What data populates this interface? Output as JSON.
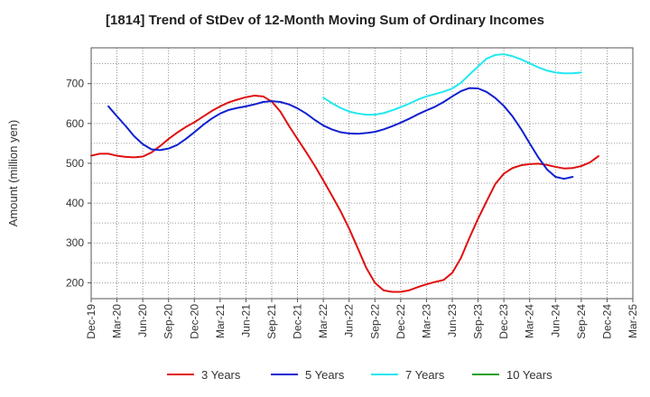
{
  "chart_data": {
    "type": "line",
    "title": "[1814]  Trend of StDev of 12-Month Moving Sum of Ordinary Incomes",
    "xlabel": "",
    "ylabel": "Amount (million yen)",
    "ylim": [
      160,
      790
    ],
    "yticks": [
      200,
      300,
      400,
      500,
      600,
      700
    ],
    "grid": true,
    "legend_position": "bottom",
    "x_tick_labels": [
      "Dec-19",
      "Mar-20",
      "Jun-20",
      "Sep-20",
      "Dec-20",
      "Mar-21",
      "Jun-21",
      "Sep-21",
      "Dec-21",
      "Mar-22",
      "Jun-22",
      "Sep-22",
      "Dec-22",
      "Mar-23",
      "Jun-23",
      "Sep-23",
      "Dec-23",
      "Mar-24",
      "Jun-24",
      "Sep-24",
      "Dec-24",
      "Mar-25"
    ],
    "x_months_total": 63,
    "series": [
      {
        "name": "3 Years",
        "color": "#e01010",
        "start_month_index": 0,
        "values": [
          519,
          524,
          524,
          519,
          516,
          515,
          517,
          527,
          543,
          561,
          577,
          591,
          603,
          617,
          631,
          643,
          653,
          660,
          666,
          670,
          668,
          655,
          630,
          594,
          561,
          528,
          494,
          457,
          419,
          380,
          336,
          287,
          237,
          200,
          181,
          177,
          177,
          181,
          189,
          196,
          202,
          207,
          225,
          262,
          313,
          361,
          405,
          448,
          474,
          488,
          495,
          498,
          499,
          496,
          491,
          487,
          488,
          493,
          502,
          518
        ]
      },
      {
        "name": "5 Years",
        "color": "#1020d0",
        "start_month_index": 2,
        "values": [
          643,
          618,
          594,
          568,
          548,
          535,
          533,
          537,
          546,
          561,
          578,
          596,
          612,
          625,
          634,
          639,
          643,
          648,
          654,
          656,
          654,
          648,
          638,
          625,
          609,
          595,
          585,
          578,
          575,
          574,
          576,
          579,
          585,
          593,
          602,
          612,
          623,
          633,
          642,
          654,
          668,
          681,
          689,
          688,
          679,
          664,
          644,
          618,
          586,
          550,
          515,
          485,
          466,
          461,
          466
        ]
      },
      {
        "name": "7 Years",
        "color": "#20e8f0",
        "start_month_index": 27,
        "values": [
          665,
          651,
          639,
          630,
          625,
          622,
          622,
          626,
          633,
          641,
          650,
          660,
          668,
          674,
          680,
          688,
          702,
          723,
          743,
          763,
          772,
          774,
          769,
          761,
          751,
          741,
          733,
          728,
          726,
          726,
          728
        ]
      },
      {
        "name": "10 Years",
        "color": "#20a020",
        "start_month_index": 0,
        "values": []
      }
    ]
  }
}
